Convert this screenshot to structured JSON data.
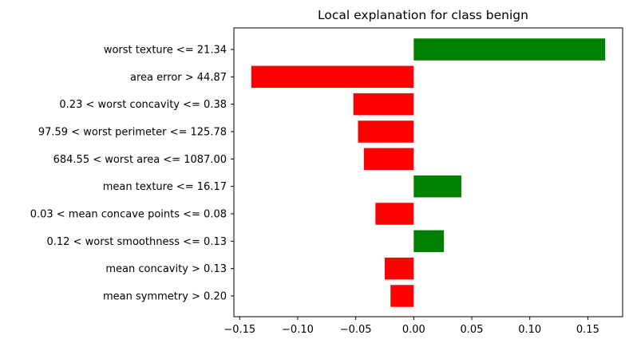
{
  "chart_data": {
    "type": "bar",
    "orientation": "horizontal",
    "title": "Local explanation for class benign",
    "xlabel": "",
    "ylabel": "",
    "categories": [
      "worst texture <= 21.34",
      "area error > 44.87",
      "0.23 < worst concavity <= 0.38",
      "97.59 < worst perimeter <= 125.78",
      "684.55 < worst area <= 1087.00",
      "mean texture <= 16.17",
      "0.03 < mean concave points <= 0.08",
      "0.12 < worst smoothness <= 0.13",
      "mean concavity > 0.13",
      "mean symmetry > 0.20"
    ],
    "values": [
      0.165,
      -0.14,
      -0.052,
      -0.048,
      -0.043,
      0.041,
      -0.033,
      0.026,
      -0.025,
      -0.02
    ],
    "xlim": [
      -0.155,
      0.18
    ],
    "xticks": [
      -0.15,
      -0.1,
      -0.05,
      0.0,
      0.05,
      0.1,
      0.15
    ],
    "xtick_labels": [
      "−0.15",
      "−0.10",
      "−0.05",
      "0.00",
      "0.05",
      "0.10",
      "0.15"
    ],
    "grid": false,
    "colors": {
      "positive": "#008000",
      "negative": "#ff0000"
    }
  }
}
